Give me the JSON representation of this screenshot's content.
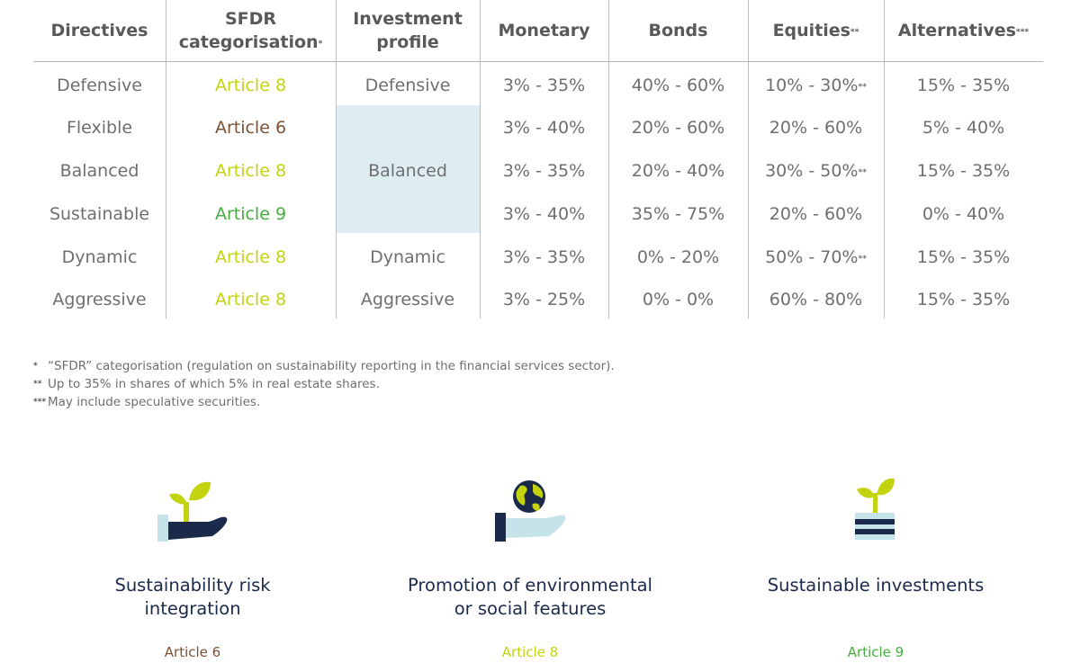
{
  "table": {
    "headers": [
      {
        "label": "Directives",
        "mark": ""
      },
      {
        "label": "SFDR categorisation",
        "mark": "*"
      },
      {
        "label": "Investment profile",
        "mark": ""
      },
      {
        "label": "Monetary",
        "mark": ""
      },
      {
        "label": "Bonds",
        "mark": ""
      },
      {
        "label": "Equities",
        "mark": "**"
      },
      {
        "label": "Alternatives",
        "mark": "***"
      }
    ],
    "rows": [
      {
        "directive": "Defensive",
        "sfdr": "Article 8",
        "profile": "Defensive",
        "monetary": "3% - 35%",
        "bonds": "40% - 60%",
        "equities": "10% - 30%",
        "equities_mark": "**",
        "alternatives": "15% - 35%"
      },
      {
        "directive": "Flexible",
        "sfdr": "Article 6",
        "profile": "",
        "monetary": "3% - 40%",
        "bonds": "20% - 60%",
        "equities": "20% - 60%",
        "equities_mark": "",
        "alternatives": "5% - 40%"
      },
      {
        "directive": "Balanced",
        "sfdr": "Article 8",
        "profile": "Balanced",
        "monetary": "3% - 35%",
        "bonds": "20% - 40%",
        "equities": "30% - 50%",
        "equities_mark": "**",
        "alternatives": "15% - 35%"
      },
      {
        "directive": "Sustainable",
        "sfdr": "Article 9",
        "profile": "",
        "monetary": "3% - 40%",
        "bonds": "35% - 75%",
        "equities": "20% - 60%",
        "equities_mark": "",
        "alternatives": "0% - 40%"
      },
      {
        "directive": "Dynamic",
        "sfdr": "Article 8",
        "profile": "Dynamic",
        "monetary": "3% - 35%",
        "bonds": "0% - 20%",
        "equities": "50% - 70%",
        "equities_mark": "**",
        "alternatives": "15% - 35%"
      },
      {
        "directive": "Aggressive",
        "sfdr": "Article 8",
        "profile": "Aggressive",
        "monetary": "3% - 25%",
        "bonds": "0% - 0%",
        "equities": "60% - 80%",
        "equities_mark": "",
        "alternatives": "15% - 35%"
      }
    ]
  },
  "notes": [
    {
      "mark": "*",
      "text": "“SFDR” categorisation (regulation on sustainability reporting in the financial services sector)."
    },
    {
      "mark": "**",
      "text": "Up to 35% in shares of which 5% in real estate shares."
    },
    {
      "mark": "***",
      "text": "May include speculative securities."
    }
  ],
  "cards": [
    {
      "title_line1": "Sustainability risk",
      "title_line2": "integration",
      "article": "Article 6",
      "icon": "plant-in-hand-icon"
    },
    {
      "title_line1": "Promotion of environmental",
      "title_line2": "or social features",
      "article": "Article 8",
      "icon": "globe-in-hand-icon"
    },
    {
      "title_line1": "Sustainable investments",
      "title_line2": "",
      "article": "Article 9",
      "icon": "plant-on-stack-icon"
    }
  ],
  "colors": {
    "article6": "#7b5135",
    "article8": "#c3d30f",
    "article9": "#46ad3f",
    "navy": "#1b2a4a",
    "highlight": "#deedf2"
  }
}
